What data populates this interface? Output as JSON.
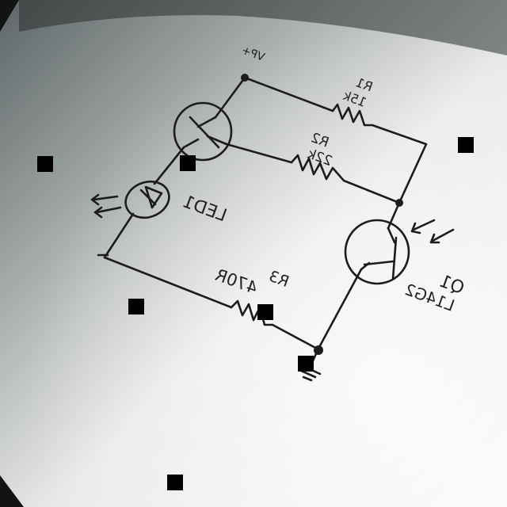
{
  "diagram": {
    "supply_label": "VP+",
    "r1": {
      "ref": "R1",
      "value": "15k"
    },
    "r2": {
      "ref": "R2",
      "value": "22k"
    },
    "r3": {
      "ref": "R3",
      "value": "470R"
    },
    "led": {
      "ref": "LED1"
    },
    "q1": {
      "ref": "Q1",
      "value": "L14G2"
    }
  },
  "colors": {
    "paper_light": "#f4f5f3",
    "paper_shadow": "#7c8384",
    "ink": "#1c1c1c",
    "marker": "#000000"
  }
}
